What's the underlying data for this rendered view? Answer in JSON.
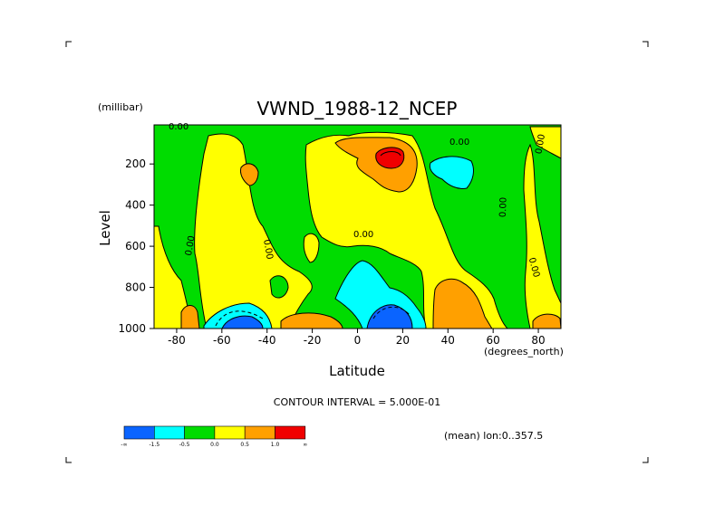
{
  "chart_data": {
    "type": "heatmap",
    "title": "VWND_1988-12_NCEP",
    "xlabel": "Latitude",
    "ylabel": "Level",
    "x_unit": "(degrees_north)",
    "y_unit": "(millibar)",
    "xlim": [
      -90,
      90
    ],
    "ylim": [
      1000,
      10
    ],
    "x_ticks": [
      -80,
      -60,
      -40,
      -20,
      0,
      20,
      40,
      60,
      80
    ],
    "x_tick_labels": [
      "-80",
      "-60",
      "-40",
      "-20",
      "0",
      "20",
      "40",
      "60",
      "80"
    ],
    "y_ticks": [
      200,
      400,
      600,
      800,
      1000
    ],
    "y_tick_labels": [
      "200",
      "400",
      "600",
      "800",
      "1000"
    ],
    "contour_label": "0.00",
    "contour_interval_text": "CONTOUR INTERVAL = 5.000E-01",
    "footer_text": "(mean) lon:0..357.5",
    "legend": {
      "colors": [
        "#0a64ff",
        "#00ffff",
        "#00dc00",
        "#ffff00",
        "#ffa000",
        "#f00000"
      ],
      "labels": [
        "-∞",
        "-1.5",
        "-0.5",
        "0.0",
        "0.5",
        "1.0",
        "∞"
      ]
    },
    "colors": {
      "strong_negative": "#0a64ff",
      "negative": "#00ffff",
      "weak_negative": "#00dc00",
      "weak_positive": "#ffff00",
      "positive": "#ffa000",
      "strong_positive": "#f00000"
    }
  }
}
